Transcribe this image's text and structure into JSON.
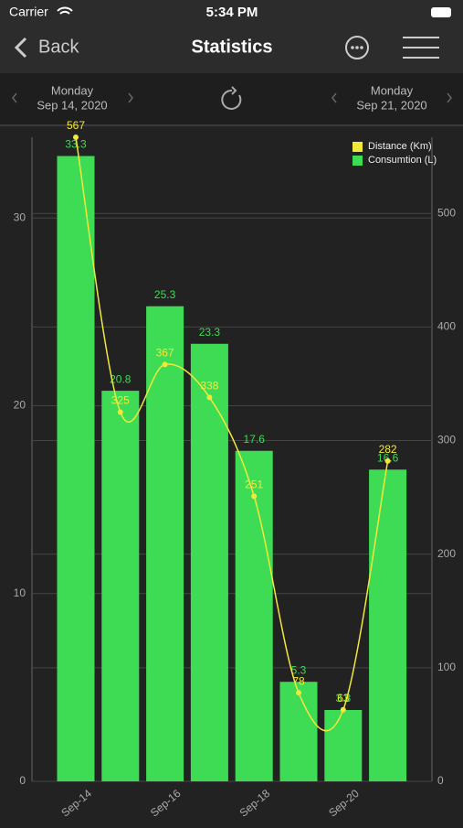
{
  "status_bar": {
    "carrier": "Carrier",
    "time": "5:34 PM"
  },
  "nav": {
    "back": "Back",
    "title": "Statistics"
  },
  "date_range": {
    "start": {
      "weekday": "Monday",
      "date": "Sep 14, 2020"
    },
    "end": {
      "weekday": "Monday",
      "date": "Sep 21, 2020"
    }
  },
  "chart_data": {
    "type": "bar",
    "categories": [
      "Sep-14",
      null,
      "Sep-16",
      null,
      "Sep-18",
      null,
      "Sep-20",
      null
    ],
    "series": [
      {
        "name": "Distance (Km)",
        "type": "line",
        "axis": "y2",
        "color": "#f2e83c",
        "values": [
          567,
          325,
          367,
          338,
          251,
          78,
          63,
          282
        ]
      },
      {
        "name": "Consumtion (L)",
        "type": "bar",
        "color": "#3ddc54",
        "values": [
          33.3,
          20.8,
          25.3,
          23.3,
          17.6,
          5.3,
          3.8,
          16.6
        ]
      }
    ],
    "ylim": [
      0,
      34.3
    ],
    "yticks": [
      0,
      10,
      20,
      30
    ],
    "y2lim": [
      0,
      567
    ],
    "y2ticks": [
      0,
      100,
      200,
      300,
      400,
      500
    ],
    "grid": true,
    "legend": "top-right"
  }
}
